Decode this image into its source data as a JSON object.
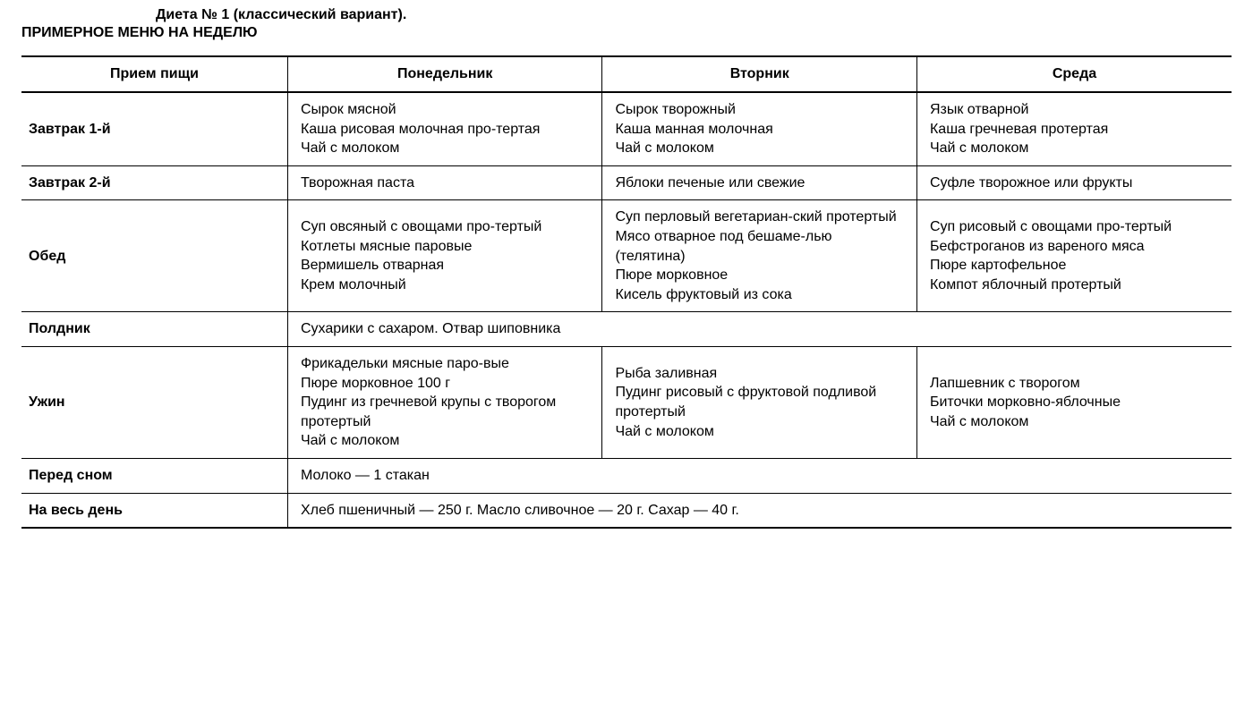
{
  "title": "Диета № 1 (классический вариант).",
  "subtitle": "ПРИМЕРНОЕ МЕНЮ НА НЕДЕЛЮ",
  "columns": [
    "Прием пищи",
    "Понедельник",
    "Вторник",
    "Среда"
  ],
  "rows": [
    {
      "meal": "Завтрак 1-й",
      "cells": [
        [
          "Сырок мясной",
          "Каша рисовая молочная про-тертая",
          "Чай с молоком"
        ],
        [
          "Сырок творожный",
          "Каша манная молочная",
          "Чай с молоком"
        ],
        [
          "Язык отварной",
          "Каша гречневая протертая",
          "Чай с молоком"
        ]
      ]
    },
    {
      "meal": "Завтрак 2-й",
      "cells": [
        [
          "Творожная паста"
        ],
        [
          "Яблоки печеные или свежие"
        ],
        [
          "Суфле творожное или фрукты"
        ]
      ]
    },
    {
      "meal": "Обед",
      "cells": [
        [
          "Суп овсяный с овощами про-тертый",
          "Котлеты мясные паровые",
          "Вермишель отварная",
          "Крем молочный"
        ],
        [
          "Суп перловый вегетариан-ский протертый",
          "Мясо отварное под бешаме-лью (телятина)",
          "Пюре морковное",
          "Кисель фруктовый из сока"
        ],
        [
          "Суп рисовый с овощами про-тертый",
          "Бефстроганов из вареного мяса",
          "Пюре картофельное",
          "Компот яблочный протертый"
        ]
      ]
    },
    {
      "meal": "Полдник",
      "span": "Сухарики с сахаром. Отвар шиповника"
    },
    {
      "meal": "Ужин",
      "cells": [
        [
          "Фрикадельки мясные паро-вые",
          "Пюре морковное 100 г",
          "Пудинг из гречневой крупы с творогом протертый",
          "Чай с молоком"
        ],
        [
          "Рыба заливная",
          "Пудинг рисовый с фруктовой подливой протертый",
          "Чай с молоком"
        ],
        [
          "Лапшевник с творогом",
          "Биточки морковно-яблочные",
          "Чай с молоком"
        ]
      ]
    },
    {
      "meal": "Перед сном",
      "span": "Молоко — 1 стакан"
    },
    {
      "meal": "На весь день",
      "span": "Хлеб пшеничный — 250 г.  Масло сливочное — 20 г.  Сахар — 40 г."
    }
  ]
}
